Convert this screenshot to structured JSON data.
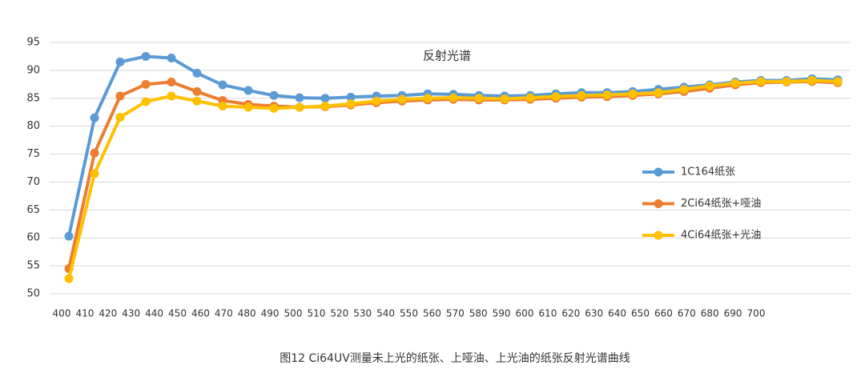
{
  "chart_data": {
    "type": "line",
    "title": "反射光谱",
    "caption": "图12 Ci64UV测量未上光的纸张、上哑油、上光油的纸张反射光谱曲线",
    "categories": [
      "400",
      "410",
      "420",
      "430",
      "440",
      "450",
      "460",
      "470",
      "480",
      "490",
      "500",
      "510",
      "520",
      "530",
      "540",
      "550",
      "560",
      "570",
      "580",
      "590",
      "600",
      "610",
      "620",
      "630",
      "640",
      "650",
      "660",
      "670",
      "680",
      "690",
      "700"
    ],
    "series": [
      {
        "name": "1C164纸张",
        "color": "#5b9bd5",
        "values": [
          60.3,
          81.5,
          91.5,
          92.5,
          92.2,
          89.5,
          87.4,
          86.4,
          85.5,
          85.1,
          85.0,
          85.2,
          85.4,
          85.5,
          85.8,
          85.7,
          85.5,
          85.4,
          85.5,
          85.8,
          86.0,
          86.0,
          86.2,
          86.6,
          87.0,
          87.4,
          87.9,
          88.2,
          88.2,
          88.5,
          88.3
        ]
      },
      {
        "name": "2Ci64纸张+哑油",
        "color": "#ed7d31",
        "values": [
          54.5,
          75.2,
          85.4,
          87.5,
          87.9,
          86.2,
          84.6,
          83.9,
          83.6,
          83.4,
          83.5,
          83.8,
          84.2,
          84.5,
          84.7,
          84.8,
          84.7,
          84.7,
          84.8,
          85.0,
          85.2,
          85.3,
          85.5,
          85.8,
          86.2,
          86.8,
          87.4,
          87.8,
          87.9,
          88.0,
          87.8
        ]
      },
      {
        "name": "4Ci64纸张+光油",
        "color": "#ffc000",
        "values": [
          52.7,
          71.5,
          81.6,
          84.4,
          85.4,
          84.5,
          83.6,
          83.4,
          83.2,
          83.4,
          83.6,
          84.0,
          84.5,
          84.8,
          85.0,
          85.1,
          85.0,
          84.9,
          85.1,
          85.3,
          85.5,
          85.6,
          85.8,
          86.0,
          86.6,
          87.2,
          87.7,
          88.0,
          88.0,
          88.2,
          88.0
        ]
      }
    ],
    "ylim": [
      50,
      95
    ],
    "yticks": [
      50,
      55,
      60,
      65,
      70,
      75,
      80,
      85,
      90,
      95
    ],
    "grid": true
  }
}
